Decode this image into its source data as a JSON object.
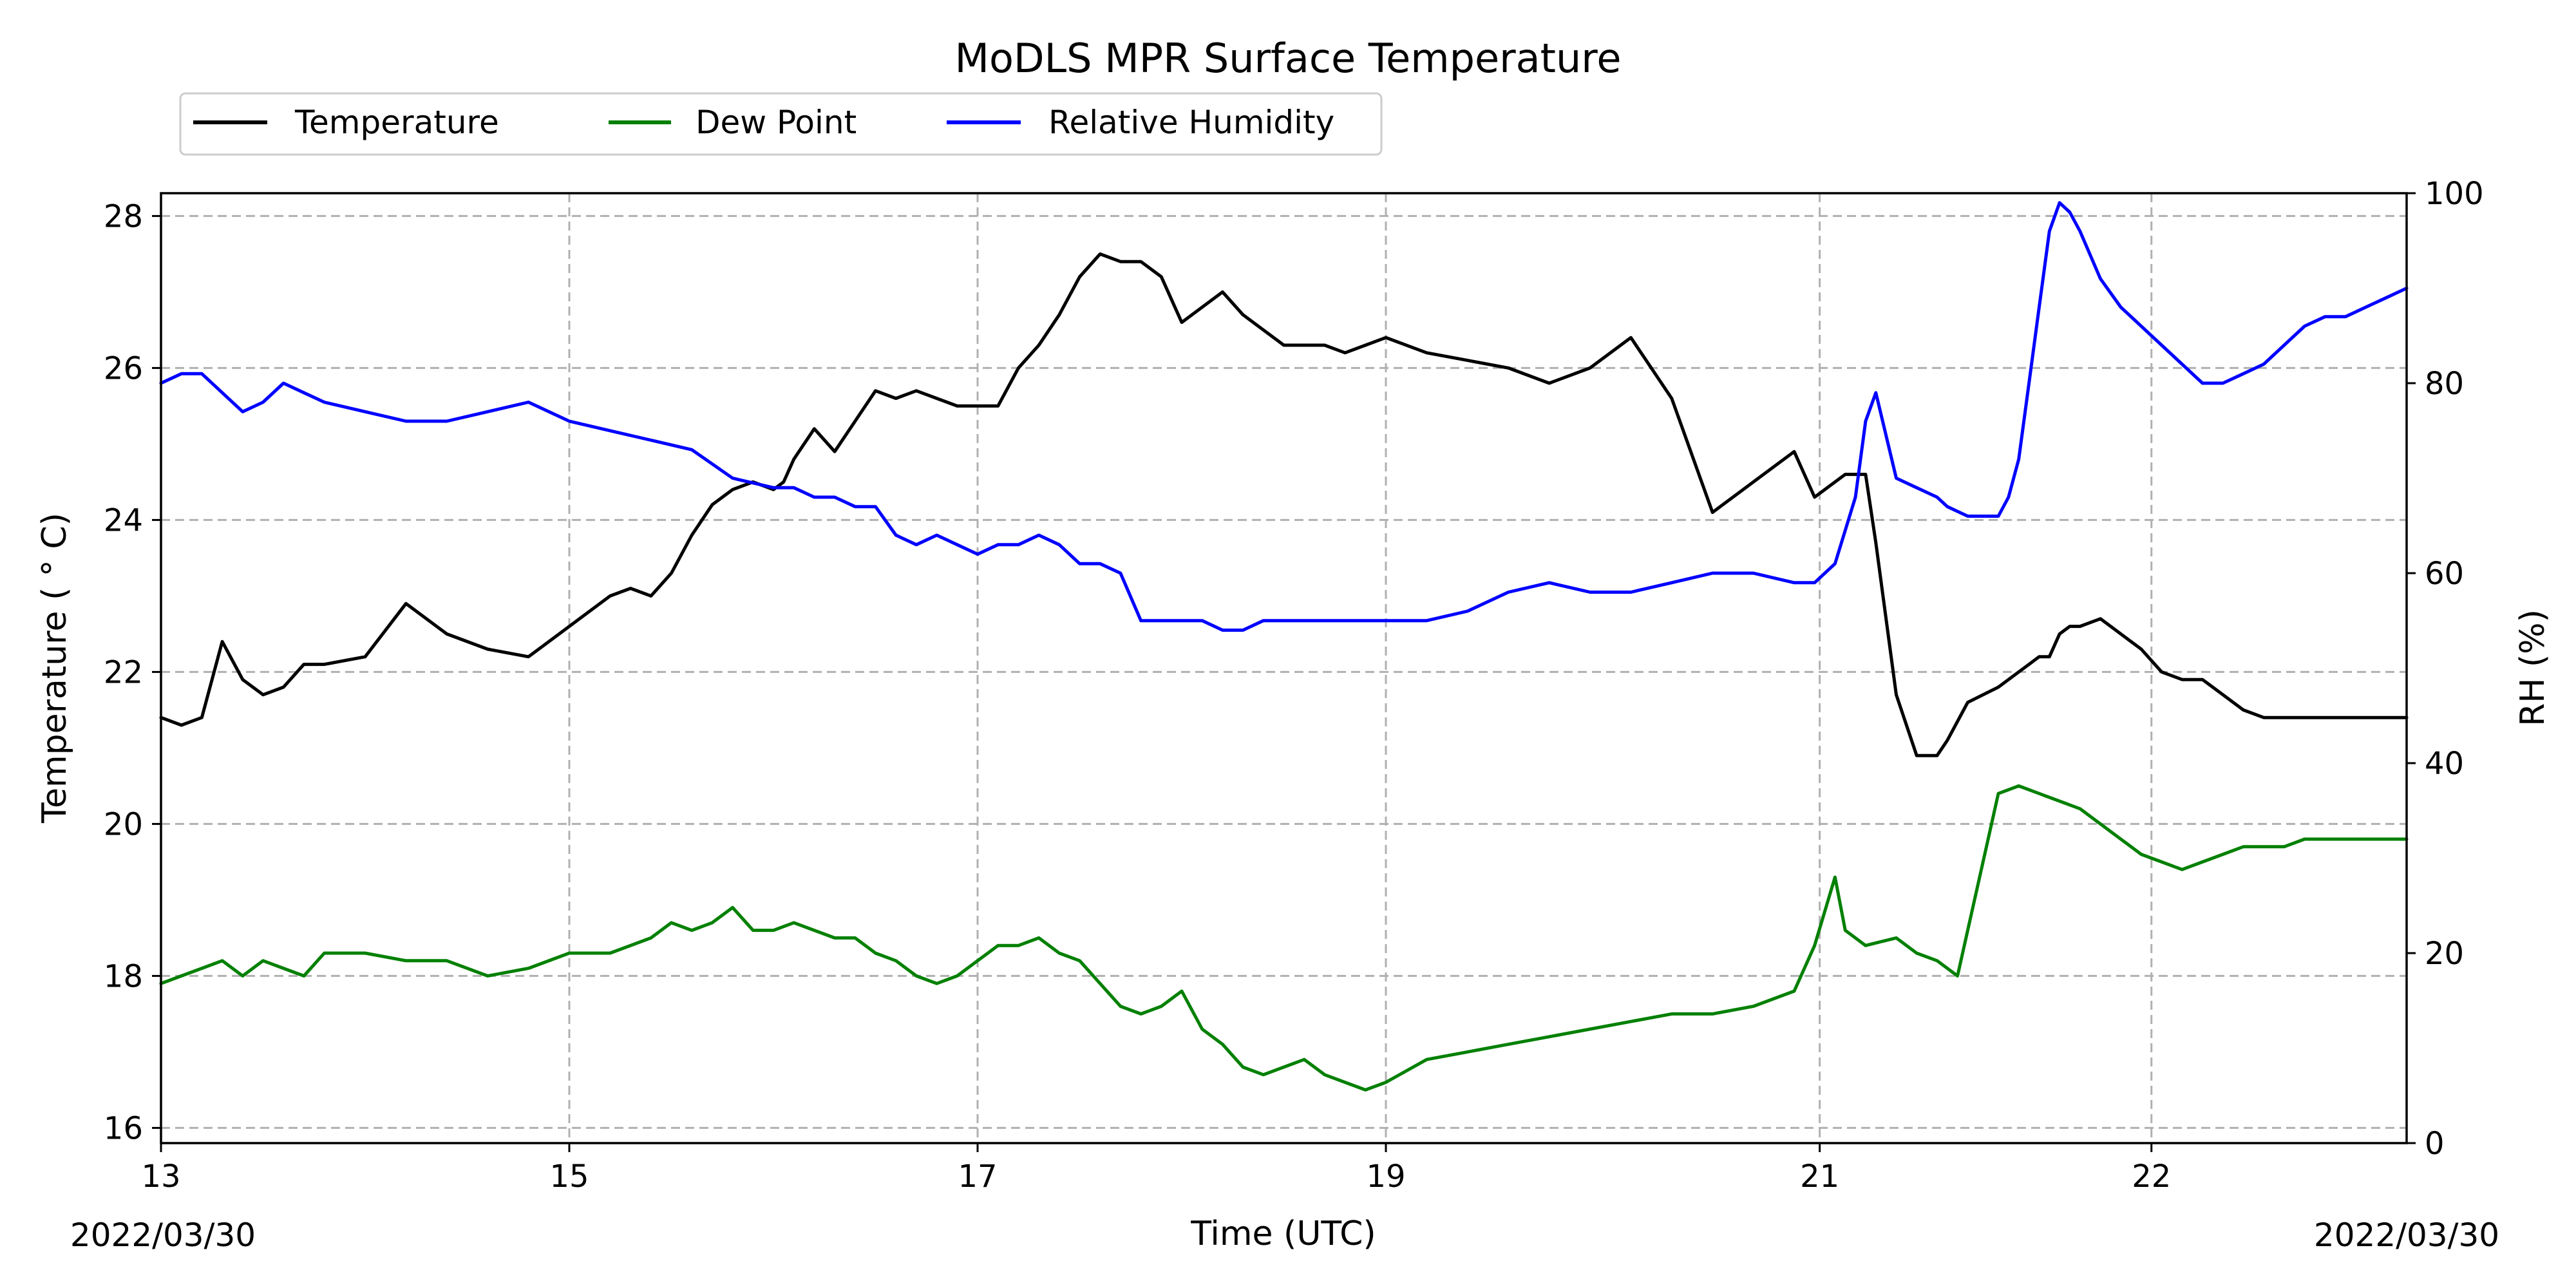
{
  "chart_data": {
    "type": "line",
    "title": "MoDLS MPR Surface Temperature",
    "xlabel": "Time (UTC)",
    "ylabel": "Temperature ($^\\circ$C)",
    "ylabel_display": "Temperature ( ° C)",
    "y2label": "RH (%)",
    "x_ticks": [
      "13",
      "15",
      "17",
      "19",
      "21",
      "22"
    ],
    "x_tick_positions": [
      0,
      2,
      4,
      6,
      8.125,
      9.75
    ],
    "xlim": [
      0,
      11
    ],
    "start_date": "2022/03/30",
    "end_date": "2022/03/30",
    "ylim": [
      15.8,
      28.3
    ],
    "y_ticks": [
      16,
      18,
      20,
      22,
      24,
      26,
      28
    ],
    "y2lim": [
      0,
      100
    ],
    "y2_ticks": [
      0,
      20,
      40,
      60,
      80,
      100
    ],
    "grid": true,
    "legend_placement": "top-left, above plot",
    "series": [
      {
        "name": "Temperature",
        "color": "#000000",
        "axis": "left",
        "x": [
          0,
          0.1,
          0.2,
          0.3,
          0.4,
          0.5,
          0.6,
          0.7,
          0.8,
          1.0,
          1.2,
          1.4,
          1.6,
          1.8,
          1.9,
          2.0,
          2.2,
          2.3,
          2.4,
          2.5,
          2.6,
          2.7,
          2.8,
          2.9,
          3.0,
          3.05,
          3.1,
          3.2,
          3.3,
          3.4,
          3.5,
          3.6,
          3.7,
          3.8,
          3.9,
          4.0,
          4.1,
          4.2,
          4.3,
          4.4,
          4.5,
          4.6,
          4.7,
          4.8,
          4.9,
          5.0,
          5.1,
          5.2,
          5.3,
          5.4,
          5.5,
          5.6,
          5.7,
          5.8,
          5.9,
          6.0,
          6.2,
          6.4,
          6.6,
          6.8,
          7.0,
          7.2,
          7.4,
          7.6,
          7.8,
          8.0,
          8.1,
          8.2,
          8.25,
          8.3,
          8.35,
          8.4,
          8.5,
          8.6,
          8.7,
          8.75,
          8.85,
          9.0,
          9.05,
          9.1,
          9.15,
          9.2,
          9.25,
          9.3,
          9.35,
          9.4,
          9.5,
          9.6,
          9.7,
          9.8,
          9.9,
          10.0,
          10.1,
          10.2,
          10.3,
          10.4,
          10.5,
          10.6,
          10.7,
          10.8,
          10.9,
          11.0
        ],
        "y": [
          21.4,
          21.3,
          21.4,
          22.4,
          21.9,
          21.7,
          21.8,
          22.1,
          22.1,
          22.2,
          22.9,
          22.5,
          22.3,
          22.2,
          22.4,
          22.6,
          23.0,
          23.1,
          23.0,
          23.3,
          23.8,
          24.2,
          24.4,
          24.5,
          24.4,
          24.5,
          24.8,
          25.2,
          24.9,
          25.3,
          25.7,
          25.6,
          25.7,
          25.6,
          25.5,
          25.5,
          25.5,
          26.0,
          26.3,
          26.7,
          27.2,
          27.5,
          27.4,
          27.4,
          27.2,
          26.6,
          26.8,
          27.0,
          26.7,
          26.5,
          26.3,
          26.3,
          26.3,
          26.2,
          26.3,
          26.4,
          26.2,
          26.1,
          26.0,
          25.8,
          26.0,
          26.4,
          25.6,
          24.1,
          24.5,
          24.9,
          24.3,
          24.5,
          24.6,
          24.6,
          24.6,
          23.7,
          21.7,
          20.9,
          20.9,
          21.1,
          21.6,
          21.8,
          21.9,
          22.0,
          22.1,
          22.2,
          22.2,
          22.5,
          22.6,
          22.6,
          22.7,
          22.5,
          22.3,
          22.0,
          21.9,
          21.9,
          21.7,
          21.5,
          21.4,
          21.4,
          21.4,
          21.4,
          21.4,
          21.4,
          21.4,
          21.4
        ]
      },
      {
        "name": "Dew Point",
        "color": "#008000",
        "axis": "left",
        "x": [
          0,
          0.1,
          0.2,
          0.3,
          0.4,
          0.5,
          0.6,
          0.7,
          0.8,
          1.0,
          1.2,
          1.4,
          1.6,
          1.8,
          2.0,
          2.2,
          2.4,
          2.5,
          2.6,
          2.7,
          2.8,
          2.9,
          3.0,
          3.1,
          3.2,
          3.3,
          3.4,
          3.5,
          3.6,
          3.7,
          3.8,
          3.9,
          4.0,
          4.1,
          4.2,
          4.3,
          4.4,
          4.5,
          4.6,
          4.7,
          4.8,
          4.9,
          5.0,
          5.1,
          5.2,
          5.3,
          5.4,
          5.5,
          5.6,
          5.7,
          5.8,
          5.9,
          6.0,
          6.2,
          6.4,
          6.6,
          6.8,
          7.0,
          7.2,
          7.4,
          7.6,
          7.8,
          8.0,
          8.1,
          8.2,
          8.25,
          8.35,
          8.5,
          8.6,
          8.7,
          8.8,
          9.0,
          9.1,
          9.2,
          9.3,
          9.4,
          9.5,
          9.6,
          9.7,
          9.8,
          9.9,
          10.0,
          10.1,
          10.2,
          10.3,
          10.4,
          10.5,
          10.6,
          10.7,
          10.8,
          10.9,
          11.0
        ],
        "y": [
          17.9,
          18.0,
          18.1,
          18.2,
          18.0,
          18.2,
          18.1,
          18.0,
          18.3,
          18.3,
          18.2,
          18.2,
          18.0,
          18.1,
          18.3,
          18.3,
          18.5,
          18.7,
          18.6,
          18.7,
          18.9,
          18.6,
          18.6,
          18.7,
          18.6,
          18.5,
          18.5,
          18.3,
          18.2,
          18.0,
          17.9,
          18.0,
          18.2,
          18.4,
          18.4,
          18.5,
          18.3,
          18.2,
          17.9,
          17.6,
          17.5,
          17.6,
          17.8,
          17.3,
          17.1,
          16.8,
          16.7,
          16.8,
          16.9,
          16.7,
          16.6,
          16.5,
          16.6,
          16.9,
          17.0,
          17.1,
          17.2,
          17.3,
          17.4,
          17.5,
          17.5,
          17.6,
          17.8,
          18.4,
          19.3,
          18.6,
          18.4,
          18.5,
          18.3,
          18.2,
          18.0,
          20.4,
          20.5,
          20.4,
          20.3,
          20.2,
          20.0,
          19.8,
          19.6,
          19.5,
          19.4,
          19.5,
          19.6,
          19.7,
          19.7,
          19.7,
          19.8,
          19.8,
          19.8,
          19.8,
          19.8,
          19.8
        ]
      },
      {
        "name": "Relative Humidity",
        "color": "#0000ff",
        "axis": "right",
        "x": [
          0,
          0.1,
          0.2,
          0.3,
          0.4,
          0.5,
          0.6,
          0.7,
          0.8,
          1.0,
          1.2,
          1.4,
          1.6,
          1.8,
          2.0,
          2.2,
          2.4,
          2.6,
          2.8,
          3.0,
          3.1,
          3.2,
          3.3,
          3.4,
          3.5,
          3.6,
          3.7,
          3.8,
          3.9,
          4.0,
          4.1,
          4.2,
          4.3,
          4.4,
          4.5,
          4.6,
          4.7,
          4.8,
          4.9,
          5.0,
          5.1,
          5.2,
          5.3,
          5.4,
          5.5,
          5.6,
          5.7,
          5.8,
          5.9,
          6.0,
          6.2,
          6.4,
          6.6,
          6.8,
          7.0,
          7.2,
          7.4,
          7.6,
          7.8,
          8.0,
          8.1,
          8.2,
          8.3,
          8.35,
          8.4,
          8.5,
          8.6,
          8.7,
          8.75,
          8.85,
          9.0,
          9.05,
          9.1,
          9.15,
          9.2,
          9.25,
          9.3,
          9.35,
          9.4,
          9.5,
          9.6,
          9.7,
          9.8,
          9.9,
          10.0,
          10.1,
          10.2,
          10.3,
          10.4,
          10.5,
          10.6,
          10.7,
          10.8,
          10.9,
          11.0
        ],
        "y": [
          80,
          81,
          81,
          79,
          77,
          78,
          80,
          79,
          78,
          77,
          76,
          76,
          77,
          78,
          76,
          75,
          74,
          73,
          70,
          69,
          69,
          68,
          68,
          67,
          67,
          64,
          63,
          64,
          63,
          62,
          63,
          63,
          64,
          63,
          61,
          61,
          60,
          55,
          55,
          55,
          55,
          54,
          54,
          55,
          55,
          55,
          55,
          55,
          55,
          55,
          55,
          56,
          58,
          59,
          58,
          58,
          59,
          60,
          60,
          59,
          59,
          61,
          68,
          76,
          79,
          70,
          69,
          68,
          67,
          66,
          66,
          68,
          72,
          80,
          88,
          96,
          99,
          98,
          96,
          91,
          88,
          86,
          84,
          82,
          80,
          80,
          81,
          82,
          84,
          86,
          87,
          87,
          88,
          89,
          90
        ]
      }
    ]
  }
}
